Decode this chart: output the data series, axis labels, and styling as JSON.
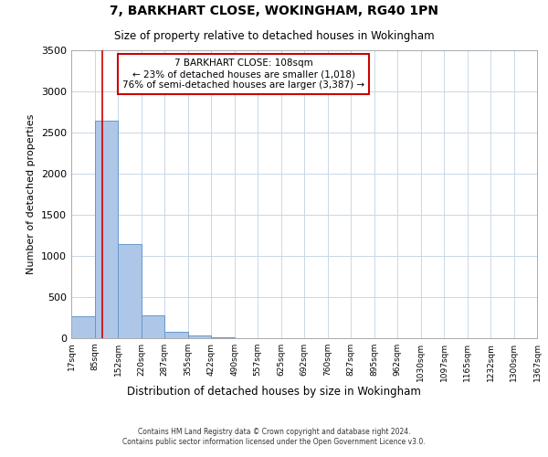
{
  "title": "7, BARKHART CLOSE, WOKINGHAM, RG40 1PN",
  "subtitle": "Size of property relative to detached houses in Wokingham",
  "xlabel": "Distribution of detached houses by size in Wokingham",
  "ylabel": "Number of detached properties",
  "bin_labels": [
    "17sqm",
    "85sqm",
    "152sqm",
    "220sqm",
    "287sqm",
    "355sqm",
    "422sqm",
    "490sqm",
    "557sqm",
    "625sqm",
    "692sqm",
    "760sqm",
    "827sqm",
    "895sqm",
    "962sqm",
    "1030sqm",
    "1097sqm",
    "1165sqm",
    "1232sqm",
    "1300sqm",
    "1367sqm"
  ],
  "bar_values": [
    270,
    2640,
    1140,
    275,
    80,
    30,
    10,
    0,
    0,
    0,
    0,
    0,
    0,
    0,
    0,
    0,
    0,
    0,
    0,
    0
  ],
  "bar_color": "#aec6e8",
  "bar_edge_color": "#6699cc",
  "property_line_x": 108,
  "bin_edges": [
    17,
    85,
    152,
    220,
    287,
    355,
    422,
    490,
    557,
    625,
    692,
    760,
    827,
    895,
    962,
    1030,
    1097,
    1165,
    1232,
    1300,
    1367
  ],
  "ylim": [
    0,
    3500
  ],
  "yticks": [
    0,
    500,
    1000,
    1500,
    2000,
    2500,
    3000,
    3500
  ],
  "annotation_line1": "7 BARKHART CLOSE: 108sqm",
  "annotation_line2": "← 23% of detached houses are smaller (1,018)",
  "annotation_line3": "76% of semi-detached houses are larger (3,387) →",
  "annotation_box_color": "#ffffff",
  "annotation_box_edge": "#cc0000",
  "red_line_color": "#cc0000",
  "footer_line1": "Contains HM Land Registry data © Crown copyright and database right 2024.",
  "footer_line2": "Contains public sector information licensed under the Open Government Licence v3.0.",
  "background_color": "#ffffff",
  "grid_color": "#c8d8e8"
}
